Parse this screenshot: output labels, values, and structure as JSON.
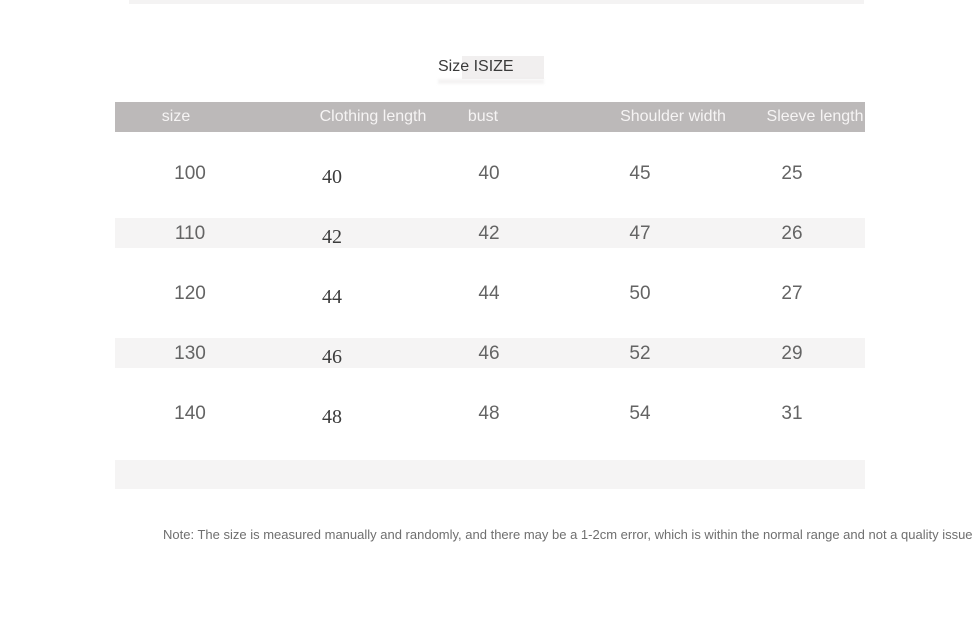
{
  "page": {
    "title": "Size ISIZE",
    "note": "Note: The size is measured manually and randomly, and there may be a 1-2cm error, which is within the normal range and not a quality issue!"
  },
  "colors": {
    "header_bg": "#bcb9b9",
    "header_text": "#f6f4f4",
    "stripe_bg": "#f5f4f4",
    "title_highlight_bg": "#f1efef",
    "value_text": "#646464",
    "serif_value_text": "#3c3c3c",
    "title_text": "#3a3a3a",
    "note_text": "#6f6f6f"
  },
  "table": {
    "columns": [
      "size",
      "Clothing length",
      "bust",
      "Shoulder width",
      "Sleeve length"
    ],
    "rows": [
      [
        "100",
        "40",
        "40",
        "45",
        "25"
      ],
      [
        "110",
        "42",
        "42",
        "47",
        "26"
      ],
      [
        "120",
        "44",
        "44",
        "50",
        "27"
      ],
      [
        "130",
        "46",
        "46",
        "52",
        "29"
      ],
      [
        "140",
        "48",
        "48",
        "54",
        "31"
      ]
    ]
  }
}
